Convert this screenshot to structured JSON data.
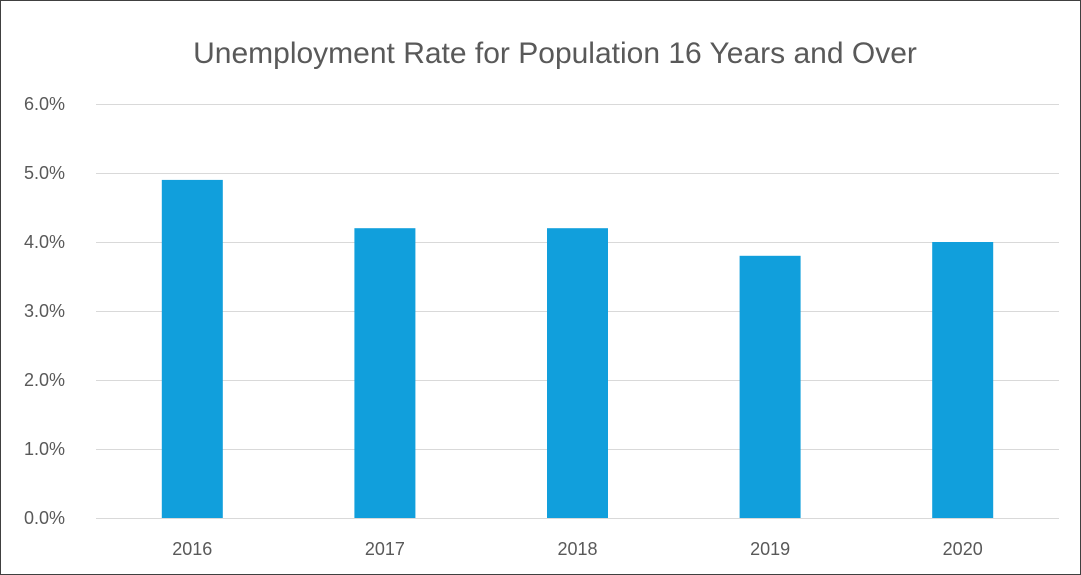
{
  "chart_data": {
    "type": "bar",
    "title": "Unemployment Rate for Population 16 Years and Over",
    "xlabel": "",
    "ylabel": "",
    "categories": [
      "2016",
      "2017",
      "2018",
      "2019",
      "2020"
    ],
    "values": [
      4.9,
      4.2,
      4.2,
      3.8,
      4.0
    ],
    "ylim": [
      0,
      6
    ],
    "yticks": [
      0,
      1,
      2,
      3,
      4,
      5,
      6
    ],
    "ytick_labels": [
      "0.0%",
      "1.0%",
      "2.0%",
      "3.0%",
      "4.0%",
      "5.0%",
      "6.0%"
    ],
    "grid": true,
    "legend": "none",
    "colors": {
      "bar": "#119FDC",
      "grid": "#D9D9D9",
      "text": "#595959",
      "border": "#404040"
    }
  }
}
